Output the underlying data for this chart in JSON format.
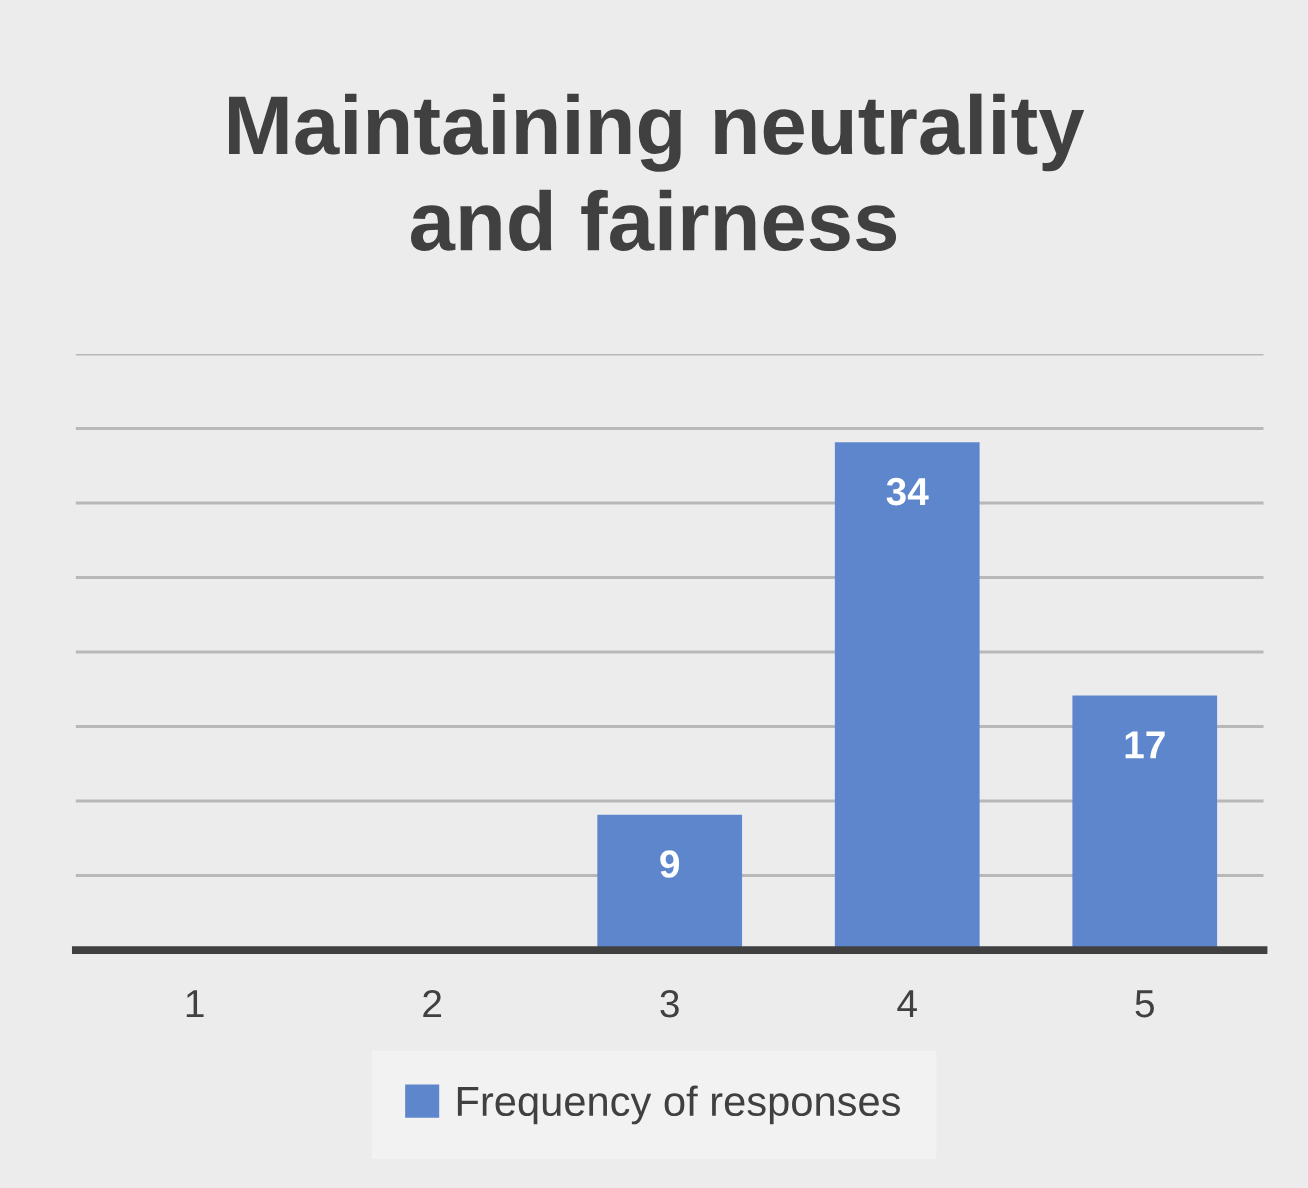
{
  "chart_data": {
    "type": "bar",
    "title": "Maintaining neutrality and fairness",
    "categories": [
      "1",
      "2",
      "3",
      "4",
      "5"
    ],
    "series": [
      {
        "name": "Frequency of responses",
        "color": "#5e86cd",
        "values": [
          0,
          0,
          9,
          34,
          17
        ],
        "value_labels": [
          null,
          null,
          "9",
          "34",
          "17"
        ]
      }
    ],
    "ylim": [
      0,
      40
    ],
    "yticks": [
      {
        "value": 0,
        "label": null
      },
      {
        "value": 5,
        "label": null
      },
      {
        "value": 10,
        "label": null
      },
      {
        "value": 15,
        "label": null
      },
      {
        "value": 20,
        "label": null
      },
      {
        "value": 25,
        "label": null
      },
      {
        "value": 30,
        "label": null
      },
      {
        "value": 35,
        "label": null
      },
      {
        "value": 40,
        "label": null
      }
    ],
    "tick_labels": "x",
    "grid": "y",
    "legend": "bottom"
  }
}
